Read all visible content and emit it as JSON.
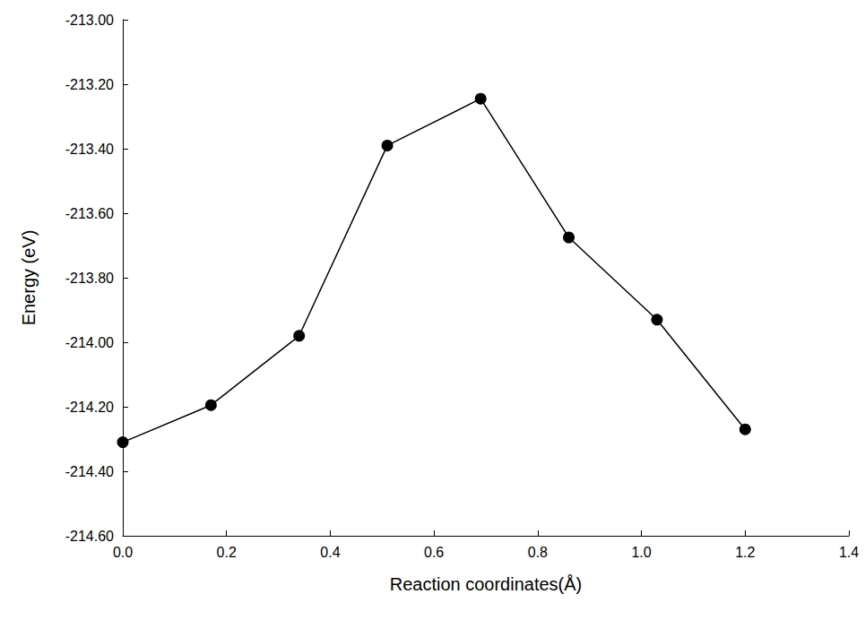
{
  "chart_data": {
    "type": "line",
    "x_label": "Reaction coordinates(Å)",
    "y_label": "Energy (eV)",
    "x": [
      0.0,
      0.17,
      0.34,
      0.51,
      0.69,
      0.86,
      1.03,
      1.2
    ],
    "values": [
      -214.31,
      -214.195,
      -213.98,
      -213.39,
      -213.245,
      -213.675,
      -213.93,
      -214.27
    ],
    "color": "#000000",
    "marker": "circle",
    "line_style": "solid",
    "grid": false,
    "xlim": [
      0,
      1.4
    ],
    "xticks": [
      {
        "value": 0,
        "label": "0.0"
      },
      0.2,
      0.4,
      0.6,
      0.8,
      {
        "value": 1,
        "label": "1.0"
      },
      1.2,
      1.4
    ],
    "ylim": [
      -214.6,
      -213
    ],
    "yticks": [
      {
        "value": -214.6,
        "label": "-214.60"
      },
      {
        "value": -214.4,
        "label": "-214.40"
      },
      {
        "value": -214.2,
        "label": "-214.20"
      },
      {
        "value": -214,
        "label": "-214.00"
      },
      {
        "value": -213.8,
        "label": "-213.80"
      },
      {
        "value": -213.6,
        "label": "-213.60"
      },
      {
        "value": -213.4,
        "label": "-213.40"
      },
      {
        "value": -213.2,
        "label": "-213.20"
      },
      {
        "value": -213,
        "label": "-213.00"
      }
    ]
  }
}
